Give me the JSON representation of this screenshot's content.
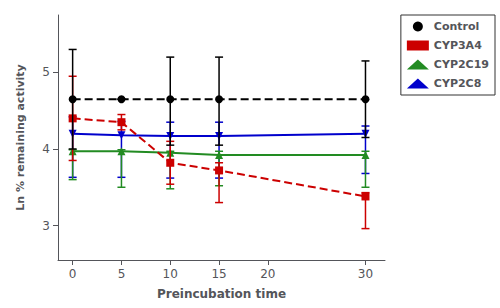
{
  "chart_data": {
    "type": "line",
    "xlabel": "Preincubation time",
    "ylabel": "Ln % remaining activity",
    "x": [
      0,
      5,
      10,
      15,
      30
    ],
    "xlim": [
      -1.5,
      32
    ],
    "xticks": [
      0,
      5,
      10,
      15,
      20,
      30
    ],
    "ylim": [
      2.55,
      5.75
    ],
    "yticks": [
      3,
      4,
      5
    ],
    "grid": false,
    "legend": "upper right",
    "series": [
      {
        "name": "Control",
        "color": "#000000",
        "line_style": "dashed",
        "marker": "circle",
        "values": [
          4.65,
          4.65,
          4.65,
          4.65,
          4.65
        ],
        "yerr_lo": [
          0.65,
          0.0,
          0.6,
          0.6,
          0.5
        ],
        "yerr_hi": [
          0.65,
          0.0,
          0.55,
          0.55,
          0.5
        ]
      },
      {
        "name": "CYP3A4",
        "color": "#cc0000",
        "line_style": "dashed",
        "marker": "square",
        "values": [
          4.4,
          4.35,
          3.82,
          3.72,
          3.38
        ],
        "yerr_lo": [
          0.55,
          0.1,
          0.28,
          0.42,
          0.42
        ],
        "yerr_hi": [
          0.55,
          0.1,
          0.28,
          0.1,
          0.05
        ]
      },
      {
        "name": "CYP2C19",
        "color": "#228B22",
        "line_style": "solid",
        "marker": "triangle",
        "values": [
          3.97,
          3.97,
          3.95,
          3.92,
          3.92
        ],
        "yerr_lo": [
          0.37,
          0.47,
          0.47,
          0.4,
          0.42
        ],
        "yerr_hi": [
          0.02,
          0.02,
          0.02,
          0.05,
          0.05
        ]
      },
      {
        "name": "CYP2C8",
        "color": "#0000cc",
        "line_style": "solid",
        "marker": "triangle-down",
        "values": [
          4.2,
          4.18,
          4.17,
          4.17,
          4.2
        ],
        "yerr_lo": [
          0.57,
          0.55,
          0.55,
          0.55,
          0.52
        ],
        "yerr_hi": [
          0.22,
          0.18,
          0.18,
          0.18,
          0.1
        ]
      }
    ]
  }
}
